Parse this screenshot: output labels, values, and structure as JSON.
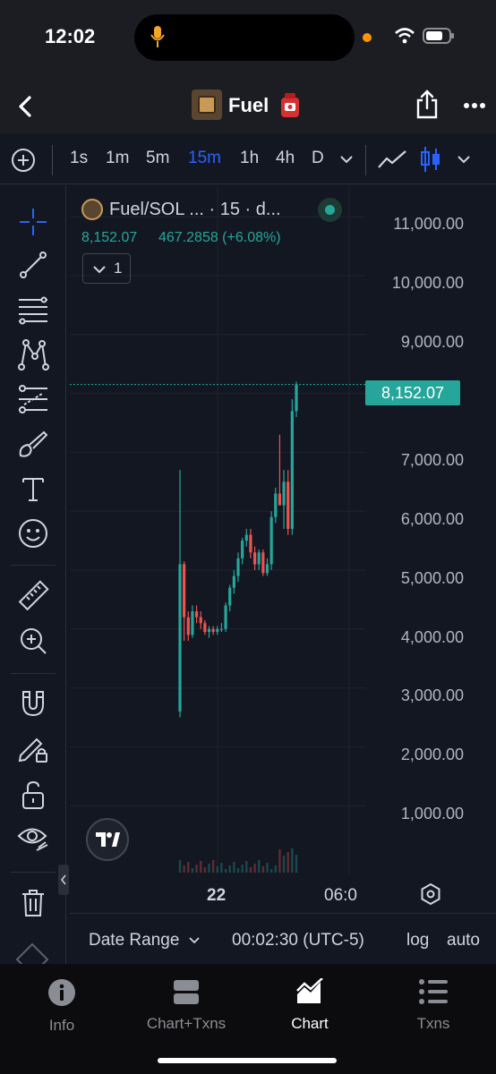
{
  "status": {
    "time": "12:02"
  },
  "nav": {
    "title": "Fuel"
  },
  "timeframes": [
    "1s",
    "1m",
    "5m",
    "15m",
    "1h",
    "4h",
    "D"
  ],
  "active_timeframe": "15m",
  "legend": {
    "symbol": "Fuel/SOL ... · 15 · d...",
    "price": "8,152.07",
    "change": "467.2858 (+6.08%)",
    "collapse_count": "1"
  },
  "price_axis": [
    "11,000.00",
    "10,000.00",
    "9,000.00",
    "8,152.07",
    "7,000.00",
    "6,000.00",
    "5,000.00",
    "4,000.00",
    "3,000.00",
    "2,000.00",
    "1,000.00"
  ],
  "current_price_label": "8,152.07",
  "time_axis": {
    "tick1": "22",
    "tick2": "06:0"
  },
  "bottom": {
    "date_range": "Date Range",
    "clock": "00:02:30 (UTC-5)",
    "log": "log",
    "auto": "auto"
  },
  "tabs": [
    {
      "label": "Info",
      "icon": "info-icon"
    },
    {
      "label": "Chart+Txns",
      "icon": "split-view-icon"
    },
    {
      "label": "Chart",
      "icon": "chart-icon"
    },
    {
      "label": "Txns",
      "icon": "list-icon"
    }
  ],
  "colors": {
    "up": "#26a69a",
    "down": "#ef5350",
    "accent": "#2962ff",
    "tab_active": "#ffffff"
  },
  "chart_data": {
    "type": "candlestick",
    "title": "Fuel/SOL",
    "ylim": [
      0,
      11500
    ],
    "x_ticks": [
      "22",
      "06:0"
    ],
    "candles": [
      {
        "o": 2600,
        "h": 6700,
        "l": 2500,
        "c": 5100
      },
      {
        "o": 5100,
        "h": 5150,
        "l": 3800,
        "c": 4200
      },
      {
        "o": 4200,
        "h": 4300,
        "l": 3800,
        "c": 3900
      },
      {
        "o": 3900,
        "h": 4400,
        "l": 3850,
        "c": 4300
      },
      {
        "o": 4300,
        "h": 4400,
        "l": 4100,
        "c": 4200
      },
      {
        "o": 4200,
        "h": 4300,
        "l": 4000,
        "c": 4100
      },
      {
        "o": 4100,
        "h": 4150,
        "l": 3900,
        "c": 3950
      },
      {
        "o": 3950,
        "h": 4050,
        "l": 3850,
        "c": 4000
      },
      {
        "o": 4000,
        "h": 4050,
        "l": 3900,
        "c": 3950
      },
      {
        "o": 3950,
        "h": 4050,
        "l": 3900,
        "c": 4000
      },
      {
        "o": 4000,
        "h": 4100,
        "l": 3950,
        "c": 4000
      },
      {
        "o": 4000,
        "h": 4450,
        "l": 3950,
        "c": 4400
      },
      {
        "o": 4400,
        "h": 4750,
        "l": 4300,
        "c": 4700
      },
      {
        "o": 4700,
        "h": 5000,
        "l": 4600,
        "c": 4900
      },
      {
        "o": 4900,
        "h": 5300,
        "l": 4800,
        "c": 5200
      },
      {
        "o": 5200,
        "h": 5550,
        "l": 5100,
        "c": 5500
      },
      {
        "o": 5500,
        "h": 5700,
        "l": 5400,
        "c": 5600
      },
      {
        "o": 5600,
        "h": 5700,
        "l": 5200,
        "c": 5300
      },
      {
        "o": 5300,
        "h": 5400,
        "l": 5000,
        "c": 5100
      },
      {
        "o": 5100,
        "h": 5350,
        "l": 5000,
        "c": 5300
      },
      {
        "o": 5300,
        "h": 5350,
        "l": 4900,
        "c": 4950
      },
      {
        "o": 4950,
        "h": 5200,
        "l": 4900,
        "c": 5100
      },
      {
        "o": 5100,
        "h": 6000,
        "l": 5000,
        "c": 5900
      },
      {
        "o": 5900,
        "h": 6400,
        "l": 5800,
        "c": 6300
      },
      {
        "o": 6300,
        "h": 7300,
        "l": 6200,
        "c": 6100
      },
      {
        "o": 6100,
        "h": 6700,
        "l": 5700,
        "c": 6500
      },
      {
        "o": 6500,
        "h": 6700,
        "l": 5600,
        "c": 5700
      },
      {
        "o": 5700,
        "h": 7900,
        "l": 5600,
        "c": 7700
      },
      {
        "o": 7700,
        "h": 8200,
        "l": 7600,
        "c": 8152
      }
    ]
  }
}
